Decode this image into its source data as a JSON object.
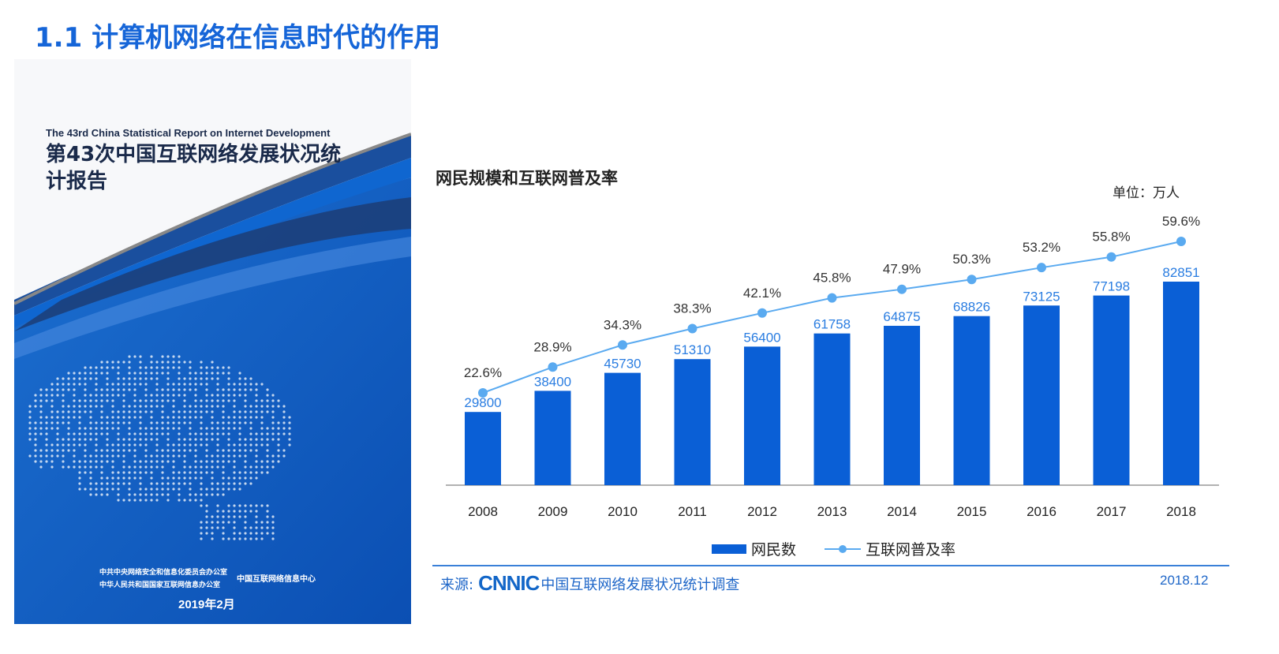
{
  "slide": {
    "title": "1.1 计算机网络在信息时代的作用"
  },
  "cover": {
    "title_en": "The 43rd China Statistical Report on Internet Development",
    "title_cn": "第43次中国互联网络发展状况统计报告",
    "org1": "中共中央网络安全和信息化委员会办公室",
    "org2": "中华人民共和国国家互联网信息办公室",
    "org3": "中国互联网络信息中心",
    "date": "2019年2月"
  },
  "chart_data": {
    "type": "bar+line",
    "title": "网民规模和互联网普及率",
    "unit": "单位：万人",
    "categories": [
      "2008",
      "2009",
      "2010",
      "2011",
      "2012",
      "2013",
      "2014",
      "2015",
      "2016",
      "2017",
      "2018"
    ],
    "series": [
      {
        "name": "网民数",
        "type": "bar",
        "color": "#0a5fd6",
        "values": [
          29800,
          38400,
          45730,
          51310,
          56400,
          61758,
          64875,
          68826,
          73125,
          77198,
          82851
        ]
      },
      {
        "name": "互联网普及率",
        "type": "line",
        "color": "#5aaaf0",
        "labels": [
          "22.6%",
          "28.9%",
          "34.3%",
          "38.3%",
          "42.1%",
          "45.8%",
          "47.9%",
          "50.3%",
          "53.2%",
          "55.8%",
          "59.6%"
        ],
        "values": [
          22.6,
          28.9,
          34.3,
          38.3,
          42.1,
          45.8,
          47.9,
          50.3,
          53.2,
          55.8,
          59.6
        ]
      }
    ],
    "legend_position": "bottom"
  },
  "footer": {
    "source_label": "来源:",
    "logo": "CNNIC",
    "source_text": "中国互联网络发展状况统计调查",
    "date": "2018.12"
  }
}
